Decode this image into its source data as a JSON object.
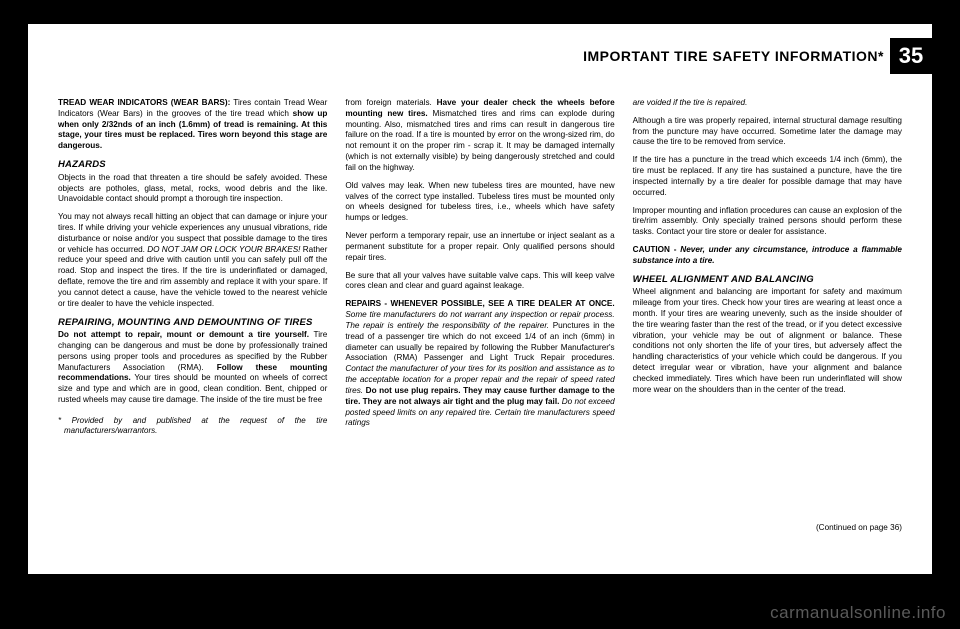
{
  "header": {
    "title": "IMPORTANT TIRE SAFETY INFORMATION*",
    "page_number": "35"
  },
  "col1": {
    "p1_lead": "TREAD WEAR INDICATORS (WEAR BARS):",
    "p1_a": " Tires contain Tread Wear Indicators (Wear Bars) in the grooves of the tire tread which ",
    "p1_bold": "show up when only 2/32nds of an inch (1.6mm) of tread is remaining. At this stage, your tires must be replaced. Tires worn beyond this stage are dangerous.",
    "h1": "HAZARDS",
    "p2": "Objects in the road that threaten a tire should be safely avoided. These objects are potholes, glass, metal, rocks, wood debris and the like. Unavoidable contact should prompt a thorough tire inspection.",
    "p3_a": "You may not always recall hitting an object that can damage or injure your tires. If while driving your vehicle experiences any unusual vibrations, ride disturbance or noise and/or you suspect that possible damage to the tires or vehicle has occurred. ",
    "p3_i": "DO NOT JAM OR LOCK YOUR BRAKES!",
    "p3_b": " Rather reduce your speed and drive with caution until you can safely pull off the road. Stop and inspect the tires. If the tire is underinflated or damaged, deflate, remove the tire and rim assembly and replace it with your spare. If you cannot detect a cause, have the vehicle towed to the nearest vehicle or tire dealer to have the vehicle inspected.",
    "h2": "REPAIRING, MOUNTING AND DEMOUNTING OF TIRES",
    "p4_bold1": "Do not attempt to repair, mount or demount a tire yourself.",
    "p4_a": " Tire changing can be dangerous and must be done by professionally trained persons using proper tools and procedures as specified by the Rubber Manufacturers Association (RMA). ",
    "p4_bold2": "Follow these mounting recommendations.",
    "p4_b": " Your tires should be mounted on wheels of correct size and type and which are in good, clean condition. Bent, chipped or rusted wheels may cause tire damage. The inside of the tire must be free",
    "footnote": "* Provided by and published at the request of the tire manufacturers/warrantors."
  },
  "col2": {
    "p1_a": "from foreign materials. ",
    "p1_bold": "Have your dealer check the wheels before mounting new tires.",
    "p1_b": " Mismatched tires and rims can explode during mounting. Also, mismatched tires and rims can result in dangerous tire failure on the road. If a tire is mounted by error on the wrong-sized rim, do not remount it on the proper rim - scrap it. It may be damaged internally (which is not externally visible) by being dangerously stretched and could fail on the highway.",
    "p2": "Old valves may leak. When new tubeless tires are mounted, have new valves of the correct type installed. Tubeless tires must be mounted only on wheels designed for tubeless tires, i.e., wheels which have safety humps or ledges.",
    "p3": "Never perform a temporary repair, use an innertube or inject sealant as a permanent substitute for a proper repair. Only qualified persons should repair tires.",
    "p4": "Be sure that all your valves have suitable valve caps. This will keep valve cores clean and clear and guard against leakage.",
    "p5_bold": "REPAIRS - WHENEVER POSSIBLE, SEE A TIRE DEALER AT ONCE.",
    "p5_i1": " Some tire manufacturers do not warrant any inspection or repair process. The repair is entirely the responsibility of the repairer.",
    "p5_a": " Punctures in the tread of a passenger tire which do not exceed 1/4 of an inch (6mm) in diameter can usually be repaired by following the Rubber Manufacturer's Association (RMA) Passenger and Light Truck Repair procedures. ",
    "p5_i2": "Contact the manufacturer of your tires for its position and assistance as to the acceptable location for a proper repair and the repair of speed rated tires.",
    "p5_bold2": " Do not use plug repairs. They may cause further damage to the tire. They are not always air tight and the plug may fail.",
    "p5_i3": " Do not exceed posted speed limits on any repaired tire. Certain tire manufacturers speed ratings"
  },
  "col3": {
    "p1_i": "are voided if the tire is repaired.",
    "p2": "Although a tire was properly repaired, internal structural damage resulting from the puncture may have occurred. Sometime later the damage may cause the tire to be removed from service.",
    "p3": "If the tire has a puncture in the tread which exceeds 1/4 inch (6mm), the tire must be replaced. If any tire has sustained a puncture, have the tire inspected internally by a tire dealer for possible damage that may have occurred.",
    "p4": "Improper mounting and inflation procedures can cause an explosion of the tire/rim assembly. Only specially trained persons should perform these tasks. Contact your tire store or dealer for assistance.",
    "p5_bold": "CAUTION - ",
    "p5_bi": "Never, under any circumstance, introduce a flammable substance into a tire.",
    "h1": "WHEEL ALIGNMENT AND BALANCING",
    "p6": "Wheel alignment and balancing are important for safety and maximum mileage from your tires. Check how your tires are wearing at least once a month. If your tires are wearing unevenly, such as the inside shoulder of the tire wearing faster than the rest of the tread, or if you detect excessive vibration, your vehicle may be out of alignment or balance. These conditions not only shorten the life of your tires, but adversely affect the handling characteristics of your vehicle which could be dangerous. If you detect irregular wear or vibration, have your alignment and balance checked immediately. Tires which have been run underinflated will show more wear on the shoulders than in the center of the tread.",
    "continued": "(Continued on page 36)"
  },
  "watermark": "carmanualsonline.info"
}
